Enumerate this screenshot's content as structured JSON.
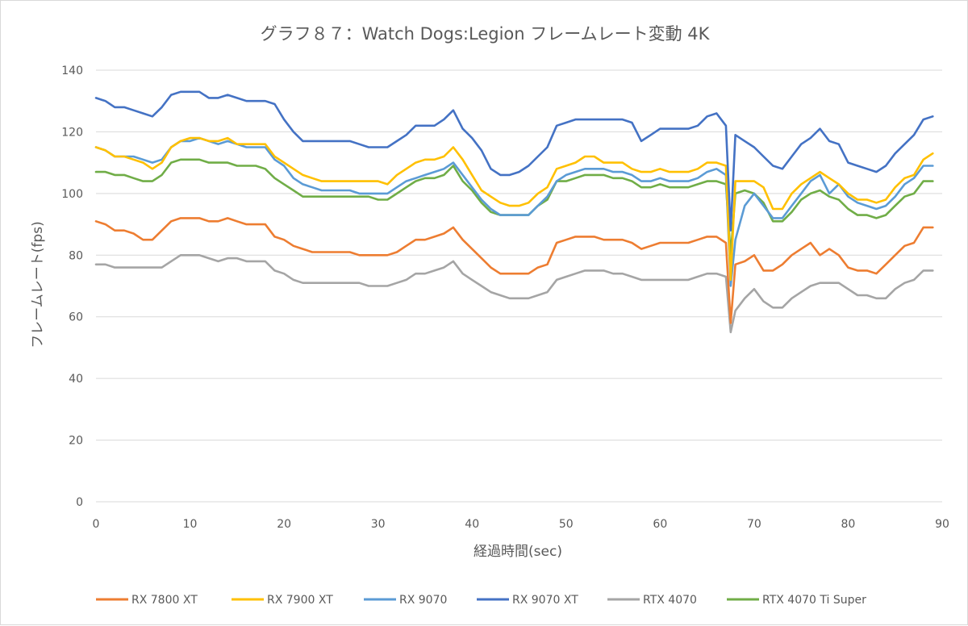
{
  "chart_data": {
    "type": "line",
    "title": "グラフ８７：Watch Dogs:Legion フレームレート変動 4K",
    "xlabel": "経過時間(sec)",
    "ylabel": "フレームレート(fps)",
    "xlim": [
      0,
      90
    ],
    "ylim": [
      0,
      140
    ],
    "xticks": [
      "0",
      "10",
      "20",
      "30",
      "40",
      "50",
      "60",
      "70",
      "80",
      "90"
    ],
    "yticks": [
      "0",
      "20",
      "40",
      "60",
      "80",
      "100",
      "120",
      "140"
    ],
    "grid": "horizontal",
    "legend_position": "bottom",
    "x": [
      0,
      1,
      2,
      3,
      4,
      5,
      6,
      7,
      8,
      9,
      10,
      11,
      12,
      13,
      14,
      15,
      16,
      17,
      18,
      19,
      20,
      21,
      22,
      23,
      24,
      25,
      26,
      27,
      28,
      29,
      30,
      31,
      32,
      33,
      34,
      35,
      36,
      37,
      38,
      39,
      40,
      41,
      42,
      43,
      44,
      45,
      46,
      47,
      48,
      49,
      50,
      51,
      52,
      53,
      54,
      55,
      56,
      57,
      58,
      59,
      60,
      61,
      62,
      63,
      64,
      65,
      66,
      67,
      67.5,
      68,
      69,
      70,
      71,
      72,
      73,
      74,
      75,
      76,
      77,
      78,
      79,
      80,
      81,
      82,
      83,
      84,
      85,
      86,
      87,
      88,
      89
    ],
    "series": [
      {
        "name": "RX 7800 XT",
        "color": "#ED7D31",
        "values": [
          91,
          90,
          88,
          88,
          87,
          85,
          85,
          88,
          91,
          92,
          92,
          92,
          91,
          91,
          92,
          91,
          90,
          90,
          90,
          86,
          85,
          83,
          82,
          81,
          81,
          81,
          81,
          81,
          80,
          80,
          80,
          80,
          81,
          83,
          85,
          85,
          86,
          87,
          89,
          85,
          82,
          79,
          76,
          74,
          74,
          74,
          74,
          76,
          77,
          84,
          85,
          86,
          86,
          86,
          85,
          85,
          85,
          84,
          82,
          83,
          84,
          84,
          84,
          84,
          85,
          86,
          86,
          84,
          58,
          77,
          78,
          80,
          75,
          75,
          77,
          80,
          82,
          84,
          80,
          82,
          80,
          76,
          75,
          75,
          74,
          77,
          80,
          83,
          84,
          89,
          89
        ]
      },
      {
        "name": "RX 7900 XT",
        "color": "#FFC000",
        "values": [
          115,
          114,
          112,
          112,
          111,
          110,
          108,
          110,
          115,
          117,
          118,
          118,
          117,
          117,
          118,
          116,
          116,
          116,
          116,
          112,
          110,
          108,
          106,
          105,
          104,
          104,
          104,
          104,
          104,
          104,
          104,
          103,
          106,
          108,
          110,
          111,
          111,
          112,
          115,
          111,
          106,
          101,
          99,
          97,
          96,
          96,
          97,
          100,
          102,
          108,
          109,
          110,
          112,
          112,
          110,
          110,
          110,
          108,
          107,
          107,
          108,
          107,
          107,
          107,
          108,
          110,
          110,
          109,
          72,
          104,
          104,
          104,
          102,
          95,
          95,
          100,
          103,
          105,
          107,
          105,
          103,
          100,
          98,
          98,
          97,
          98,
          102,
          105,
          106,
          111,
          113
        ]
      },
      {
        "name": "RX 9070",
        "color": "#5B9BD5",
        "values": [
          115,
          114,
          112,
          112,
          112,
          111,
          110,
          111,
          115,
          117,
          117,
          118,
          117,
          116,
          117,
          116,
          115,
          115,
          115,
          111,
          109,
          105,
          103,
          102,
          101,
          101,
          101,
          101,
          100,
          100,
          100,
          100,
          102,
          104,
          105,
          106,
          107,
          108,
          110,
          106,
          102,
          98,
          95,
          93,
          93,
          93,
          93,
          96,
          99,
          104,
          106,
          107,
          108,
          108,
          108,
          107,
          107,
          106,
          104,
          104,
          105,
          104,
          104,
          104,
          105,
          107,
          108,
          106,
          70,
          85,
          96,
          100,
          96,
          92,
          92,
          96,
          100,
          104,
          106,
          100,
          103,
          99,
          97,
          96,
          95,
          96,
          99,
          103,
          105,
          109,
          109
        ]
      },
      {
        "name": "RX 9070 XT",
        "color": "#4472C4",
        "values": [
          131,
          130,
          128,
          128,
          127,
          126,
          125,
          128,
          132,
          133,
          133,
          133,
          131,
          131,
          132,
          131,
          130,
          130,
          130,
          129,
          124,
          120,
          117,
          117,
          117,
          117,
          117,
          117,
          116,
          115,
          115,
          115,
          117,
          119,
          122,
          122,
          122,
          124,
          127,
          121,
          118,
          114,
          108,
          106,
          106,
          107,
          109,
          112,
          115,
          122,
          123,
          124,
          124,
          124,
          124,
          124,
          124,
          123,
          117,
          119,
          121,
          121,
          121,
          121,
          122,
          125,
          126,
          122,
          88,
          119,
          117,
          115,
          112,
          109,
          108,
          112,
          116,
          118,
          121,
          117,
          116,
          110,
          109,
          108,
          107,
          109,
          113,
          116,
          119,
          124,
          125
        ]
      },
      {
        "name": "RTX 4070",
        "color": "#A5A5A5",
        "values": [
          77,
          77,
          76,
          76,
          76,
          76,
          76,
          76,
          78,
          80,
          80,
          80,
          79,
          78,
          79,
          79,
          78,
          78,
          78,
          75,
          74,
          72,
          71,
          71,
          71,
          71,
          71,
          71,
          71,
          70,
          70,
          70,
          71,
          72,
          74,
          74,
          75,
          76,
          78,
          74,
          72,
          70,
          68,
          67,
          66,
          66,
          66,
          67,
          68,
          72,
          73,
          74,
          75,
          75,
          75,
          74,
          74,
          73,
          72,
          72,
          72,
          72,
          72,
          72,
          73,
          74,
          74,
          73,
          55,
          62,
          66,
          69,
          65,
          63,
          63,
          66,
          68,
          70,
          71,
          71,
          71,
          69,
          67,
          67,
          66,
          66,
          69,
          71,
          72,
          75,
          75
        ]
      },
      {
        "name": "RTX 4070 Ti Super",
        "color": "#70AD47",
        "values": [
          107,
          107,
          106,
          106,
          105,
          104,
          104,
          106,
          110,
          111,
          111,
          111,
          110,
          110,
          110,
          109,
          109,
          109,
          108,
          105,
          103,
          101,
          99,
          99,
          99,
          99,
          99,
          99,
          99,
          99,
          98,
          98,
          100,
          102,
          104,
          105,
          105,
          106,
          109,
          104,
          101,
          97,
          94,
          93,
          93,
          93,
          93,
          96,
          98,
          104,
          104,
          105,
          106,
          106,
          106,
          105,
          105,
          104,
          102,
          102,
          103,
          102,
          102,
          102,
          103,
          104,
          104,
          103,
          80,
          100,
          101,
          100,
          97,
          91,
          91,
          94,
          98,
          100,
          101,
          99,
          98,
          95,
          93,
          93,
          92,
          93,
          96,
          99,
          100,
          104,
          104
        ]
      }
    ]
  }
}
